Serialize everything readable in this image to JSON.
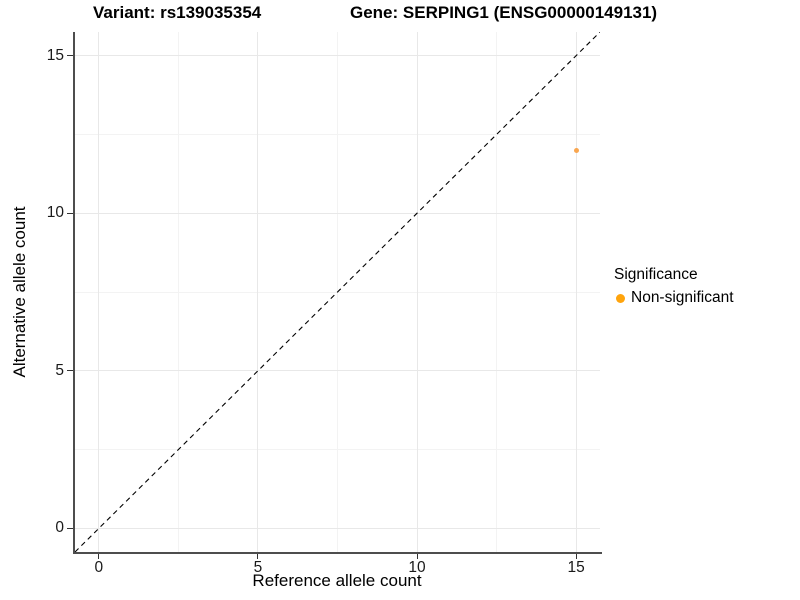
{
  "title": {
    "variant": "Variant: rs139035354",
    "gene": "Gene: SERPING1 (ENSG00000149131)"
  },
  "chart_data": {
    "type": "scatter",
    "title": "Variant: rs139035354   Gene: SERPING1 (ENSG00000149131)",
    "xlabel": "Reference allele count",
    "ylabel": "Alternative allele count",
    "xlim": [
      -0.75,
      15.75
    ],
    "ylim": [
      -0.75,
      15.75
    ],
    "x_ticks": [
      0,
      5,
      10,
      15
    ],
    "y_ticks": [
      0,
      5,
      10,
      15
    ],
    "x_minor_ticks": [
      2.5,
      7.5,
      12.5
    ],
    "y_minor_ticks": [
      2.5,
      7.5,
      12.5
    ],
    "grid": "on",
    "series": [
      {
        "name": "Non-significant",
        "color": "#F9A64F",
        "marker": "circle",
        "marker_size_px": 5,
        "points": [
          {
            "x": 15,
            "y": 12
          }
        ]
      }
    ],
    "reference_line": {
      "type": "identity",
      "from": [
        -0.75,
        -0.75
      ],
      "to": [
        15.75,
        15.75
      ],
      "style": "dashed",
      "color": "#000000"
    },
    "legend": {
      "title": "Significance",
      "position": "right",
      "items": [
        {
          "label": "Non-significant",
          "color": "#FFA40D",
          "marker": "circle"
        }
      ]
    }
  },
  "colors": {
    "background": "#FFFFFF",
    "grid_major": "#E8E8E8",
    "grid_minor": "#F3F3F3",
    "axis_line": "#4D4D4D",
    "tick_mark": "#333333",
    "text": "#000000",
    "point": "#F9A64F",
    "legend_marker": "#FFA40D"
  }
}
